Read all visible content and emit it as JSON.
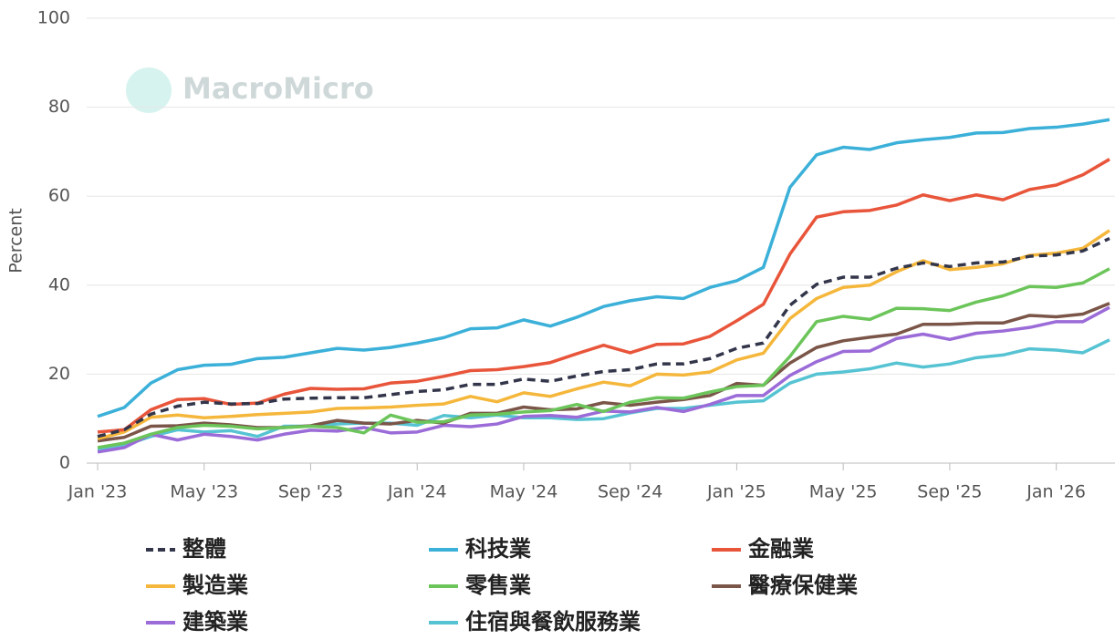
{
  "chart_data": {
    "type": "line",
    "watermark": "MacroMicro",
    "y_label": "Percent",
    "categories": [
      "Jan '23",
      null,
      null,
      null,
      "May '23",
      null,
      null,
      null,
      "Sep '23",
      null,
      null,
      null,
      "Jan '24",
      null,
      null,
      null,
      "May '24",
      null,
      null,
      null,
      "Sep '24",
      null,
      null,
      null,
      "Jan '25",
      null,
      null,
      null,
      "May '25",
      null,
      null,
      null,
      "Sep '25",
      null,
      null,
      null,
      "Jan '26",
      null,
      null
    ],
    "ylim": [
      0,
      100
    ],
    "yticks": [
      0,
      20,
      40,
      60,
      80,
      100
    ],
    "grid": true,
    "series": [
      {
        "name": "整體",
        "color": "#33364a",
        "dashed": true,
        "values": [
          6,
          7.5,
          11,
          12.8,
          13.7,
          13.3,
          13.4,
          14.4,
          14.6,
          14.7,
          14.7,
          15.4,
          16.1,
          16.5,
          17.7,
          17.7,
          18.9,
          18.4,
          19.6,
          20.6,
          21,
          22.3,
          22.3,
          23.5,
          25.8,
          27,
          35.5,
          40.2,
          41.8,
          41.8,
          43.8,
          45,
          44.2,
          45,
          45.2,
          46.5,
          46.8,
          47.7,
          50.5
        ]
      },
      {
        "name": "科技業",
        "color": "#3bb0d8",
        "values": [
          10.5,
          12.5,
          18,
          21,
          22,
          22.2,
          23.5,
          23.8,
          24.8,
          25.8,
          25.4,
          26,
          27,
          28.2,
          30.2,
          30.4,
          32.2,
          30.8,
          32.8,
          35.2,
          36.5,
          37.4,
          37,
          39.5,
          41,
          44,
          62,
          69.3,
          71,
          70.5,
          72,
          72.7,
          73.2,
          74.2,
          74.3,
          75.2,
          75.5,
          76.2,
          77.2
        ]
      },
      {
        "name": "金融業",
        "color": "#e8553a",
        "values": [
          7,
          7.5,
          12,
          14.3,
          14.5,
          13.2,
          13.5,
          15.5,
          16.8,
          16.6,
          16.7,
          18,
          18.4,
          19.5,
          20.8,
          21,
          21.7,
          22.6,
          24.6,
          26.5,
          24.8,
          26.7,
          26.8,
          28.5,
          32,
          35.7,
          47,
          55.3,
          56.5,
          56.8,
          58,
          60.3,
          59,
          60.3,
          59.2,
          61.5,
          62.5,
          64.8,
          68.3
        ]
      },
      {
        "name": "製造業",
        "color": "#f5b73b",
        "values": [
          5.5,
          7,
          10.3,
          10.8,
          10.2,
          10.5,
          10.9,
          11.2,
          11.5,
          12.3,
          12.4,
          12.6,
          13,
          13.3,
          15,
          13.8,
          15.8,
          15,
          16.7,
          18.2,
          17.4,
          20,
          19.8,
          20.5,
          23.2,
          24.7,
          32.5,
          37,
          39.5,
          40,
          43,
          45.5,
          43.5,
          44,
          44.8,
          46.7,
          47.2,
          48.3,
          52.3
        ]
      },
      {
        "name": "零售業",
        "color": "#6cc55a",
        "values": [
          3.5,
          4.5,
          6.5,
          8,
          8.5,
          8.3,
          7.7,
          8,
          8.3,
          8,
          6.8,
          10.8,
          9.2,
          9.3,
          10.8,
          11,
          11.5,
          11.8,
          13.2,
          11.6,
          13.7,
          14.7,
          14.6,
          16,
          17.2,
          17.5,
          24,
          31.8,
          33,
          32.3,
          34.8,
          34.7,
          34.3,
          36.2,
          37.6,
          39.7,
          39.5,
          40.5,
          43.7
        ]
      },
      {
        "name": "醫療保健業",
        "color": "#7a5548",
        "values": [
          5,
          5.8,
          8.3,
          8.4,
          9,
          8.6,
          8,
          8,
          8.4,
          9.6,
          9,
          8.8,
          9.6,
          9,
          11.2,
          11.2,
          12.6,
          12,
          12.2,
          13.6,
          13,
          13.7,
          14.3,
          15.2,
          17.9,
          17.5,
          22.5,
          26,
          27.5,
          28.3,
          29,
          31.2,
          31.2,
          31.5,
          31.5,
          33.2,
          32.9,
          33.5,
          35.9
        ]
      },
      {
        "name": "建築業",
        "color": "#9b6bd8",
        "values": [
          2.5,
          3.5,
          6.5,
          5.2,
          6.5,
          6,
          5.2,
          6.5,
          7.4,
          7.2,
          8,
          6.8,
          7,
          8.5,
          8.2,
          8.8,
          10.5,
          10.7,
          10.3,
          11.7,
          11.5,
          12.5,
          11.6,
          13.2,
          15.2,
          15.2,
          19.7,
          22.8,
          25.1,
          25.2,
          28,
          29,
          27.8,
          29.2,
          29.7,
          30.5,
          31.8,
          31.8,
          35
        ]
      },
      {
        "name": "住宿與餐飲服務業",
        "color": "#56c3d3",
        "values": [
          3,
          4,
          6,
          7.5,
          7,
          7.3,
          6,
          8.3,
          8.3,
          8.8,
          9,
          9,
          8.5,
          10.7,
          10.2,
          10.8,
          10.2,
          10.2,
          9.8,
          10,
          11.3,
          12.3,
          12.3,
          13,
          13.7,
          14,
          18,
          20,
          20.5,
          21.2,
          22.5,
          21.6,
          22.3,
          23.7,
          24.3,
          25.7,
          25.4,
          24.8,
          27.7
        ]
      }
    ]
  }
}
